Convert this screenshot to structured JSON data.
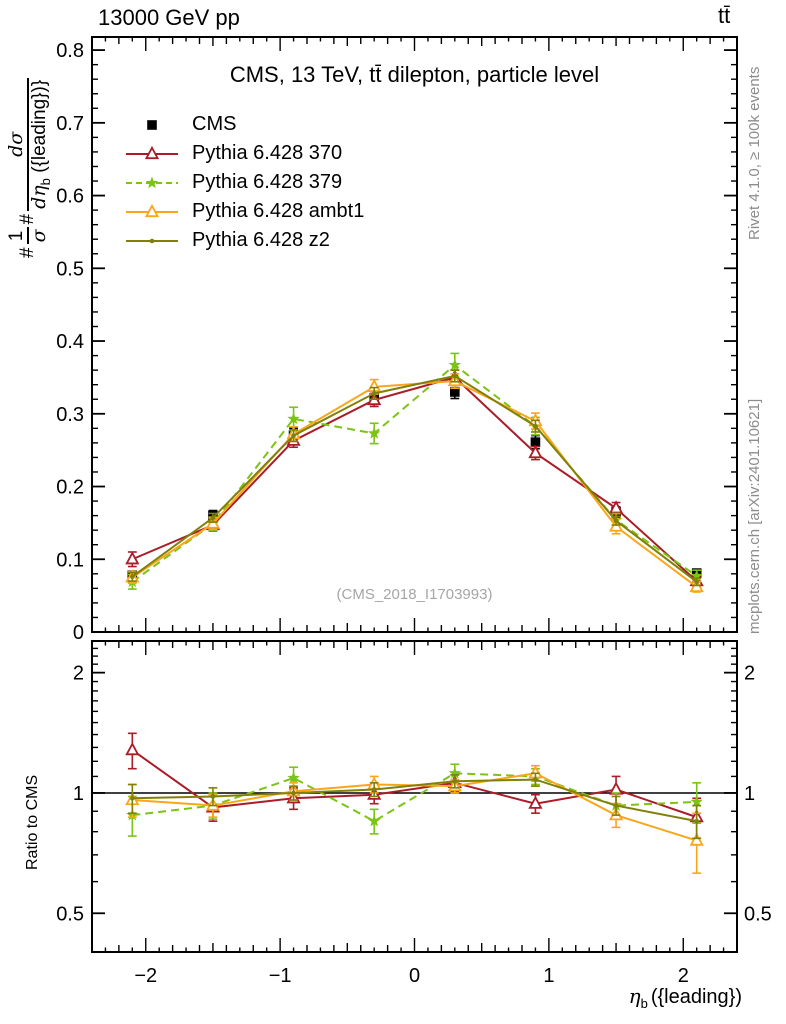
{
  "header": {
    "left": "13000 GeV pp",
    "right": "tt̄"
  },
  "panel_title": "CMS, 13 TeV, tt̄ dilepton, particle level",
  "watermark": "(CMS_2018_I1703993)",
  "side_notes": {
    "rivet": "Rivet 4.1.0, ≥ 100k events",
    "mcplots": "mcplots.cern.ch [arXiv:2401.10621]"
  },
  "axes": {
    "ratio_label": "Ratio to CMS",
    "x_label": {
      "symbol": "η",
      "sub": "b",
      "suffix": "({leading})"
    },
    "y_label": {
      "hash1": "#",
      "frac1_num": "1",
      "frac1_den": "σ",
      "hash2": "#",
      "frac2_num": "dσ",
      "frac2_den_main": "dη",
      "frac2_den_sub": "b",
      "frac2_den_tail": " ({leading})}"
    }
  },
  "colors": {
    "cms": "#000000",
    "p370": "#aa1c28",
    "p379": "#7cc414",
    "ambt1": "#faa61a",
    "z2": "#80800a",
    "frame": "#000000",
    "gray_text": "#8c8c8c"
  },
  "chart_data": [
    {
      "type": "line",
      "title": "CMS, 13 TeV, tt̄ dilepton, particle level",
      "xlabel": "η_b ({leading})",
      "ylabel": "1/σ dσ/dη_b ({leading})",
      "xlim": [
        -2.4,
        2.4
      ],
      "ylim": [
        0,
        0.818
      ],
      "grid": false,
      "legend_position": "top-left",
      "x": [
        -2.1,
        -1.5,
        -0.9,
        -0.3,
        0.3,
        0.9,
        1.5,
        2.1
      ],
      "x_ticks": {
        "values": [
          -2,
          -1,
          0,
          1,
          2
        ],
        "labels": [
          "−2",
          "−1",
          "0",
          "1",
          "2"
        ]
      },
      "y_ticks": {
        "values": [
          0,
          0.1,
          0.2,
          0.3,
          0.4,
          0.5,
          0.6,
          0.7,
          0.8
        ],
        "labels": [
          "0",
          "0.1",
          "0.2",
          "0.3",
          "0.4",
          "0.5",
          "0.6",
          "0.7",
          "0.8"
        ]
      },
      "series": [
        {
          "name": "CMS",
          "color": "#000000",
          "marker": "square",
          "line": "none",
          "values": [
            0.078,
            0.16,
            0.271,
            0.322,
            0.33,
            0.261,
            0.165,
            0.081
          ],
          "errors": [
            0.005,
            0.007,
            0.009,
            0.009,
            0.009,
            0.009,
            0.007,
            0.005
          ]
        },
        {
          "name": "Pythia 6.428 370",
          "color": "#aa1c28",
          "marker": "triangle",
          "line": "solid",
          "values": [
            0.1,
            0.147,
            0.263,
            0.319,
            0.35,
            0.246,
            0.17,
            0.07
          ],
          "errors": [
            0.01,
            0.008,
            0.009,
            0.009,
            0.01,
            0.009,
            0.008,
            0.007
          ]
        },
        {
          "name": "Pythia 6.428 379",
          "color": "#7cc414",
          "marker": "star",
          "line": "dashed",
          "values": [
            0.069,
            0.149,
            0.293,
            0.273,
            0.367,
            0.283,
            0.154,
            0.077
          ],
          "errors": [
            0.01,
            0.009,
            0.016,
            0.014,
            0.016,
            0.012,
            0.009,
            0.008
          ]
        },
        {
          "name": "Pythia 6.428 ambt1",
          "color": "#faa61a",
          "marker": "triangle",
          "line": "solid",
          "values": [
            0.075,
            0.149,
            0.272,
            0.337,
            0.345,
            0.29,
            0.145,
            0.062
          ],
          "errors": [
            0.008,
            0.008,
            0.01,
            0.01,
            0.01,
            0.011,
            0.01,
            0.007
          ]
        },
        {
          "name": "Pythia 6.428 z2",
          "color": "#80800a",
          "marker": "dot",
          "line": "solid",
          "values": [
            0.076,
            0.157,
            0.27,
            0.328,
            0.352,
            0.283,
            0.153,
            0.069
          ],
          "errors": [
            0.006,
            0.006,
            0.008,
            0.008,
            0.008,
            0.008,
            0.006,
            0.005
          ]
        }
      ]
    },
    {
      "type": "line",
      "title": "",
      "xlabel": "η_b ({leading})",
      "ylabel": "Ratio to CMS",
      "yscale": "log",
      "xlim": [
        -2.4,
        2.4
      ],
      "ylim": [
        0.4,
        2.4
      ],
      "reference_line": 1,
      "x": [
        -2.1,
        -1.5,
        -0.9,
        -0.3,
        0.3,
        0.9,
        1.5,
        2.1
      ],
      "x_ticks": {
        "values": [
          -2,
          -1,
          0,
          1,
          2
        ],
        "labels": [
          "−2",
          "−1",
          "0",
          "1",
          "2"
        ]
      },
      "y_ticks": {
        "values": [
          0.5,
          1,
          2
        ],
        "labels": [
          "0.5",
          "1",
          "2"
        ]
      },
      "series": [
        {
          "name": "Pythia 6.428 370",
          "values": [
            1.28,
            0.92,
            0.97,
            0.99,
            1.06,
            0.94,
            1.02,
            0.87
          ],
          "errors": [
            0.13,
            0.07,
            0.06,
            0.05,
            0.05,
            0.05,
            0.08,
            0.1
          ]
        },
        {
          "name": "Pythia 6.428 379",
          "values": [
            0.88,
            0.93,
            1.09,
            0.85,
            1.12,
            1.1,
            0.93,
            0.95
          ],
          "errors": [
            0.1,
            0.07,
            0.07,
            0.06,
            0.06,
            0.05,
            0.07,
            0.11
          ]
        },
        {
          "name": "Pythia 6.428 ambt1",
          "values": [
            0.96,
            0.93,
            1.01,
            1.05,
            1.04,
            1.12,
            0.88,
            0.76
          ],
          "errors": [
            0.09,
            0.06,
            0.05,
            0.05,
            0.04,
            0.05,
            0.06,
            0.13
          ]
        },
        {
          "name": "Pythia 6.428 z2",
          "values": [
            0.97,
            0.98,
            1.0,
            1.02,
            1.07,
            1.08,
            0.93,
            0.85
          ],
          "errors": [
            0.08,
            0.05,
            0.04,
            0.04,
            0.04,
            0.04,
            0.05,
            0.08
          ]
        }
      ]
    }
  ]
}
